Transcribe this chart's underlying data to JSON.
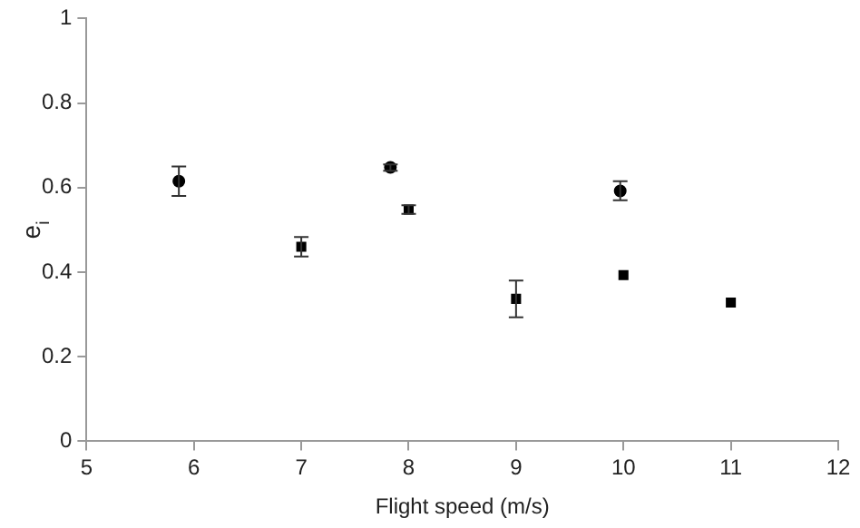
{
  "chart_data": {
    "type": "scatter",
    "xlabel": "Flight speed (m/s)",
    "ylabel": "e$_{i}$",
    "xlim": [
      5,
      12
    ],
    "xticks": [
      5,
      6,
      7,
      8,
      9,
      10,
      11,
      12
    ],
    "ylim": [
      0,
      1
    ],
    "yticks": [
      0,
      0.2,
      0.4,
      0.6,
      0.8,
      1
    ],
    "grid": false,
    "legend": false,
    "series": [
      {
        "color": "#000000",
        "marker": "circle",
        "x": [
          5.86,
          7.83,
          9.97
        ],
        "values": [
          0.615,
          0.648,
          0.592
        ],
        "errors": [
          [
            0.58,
            0.65
          ],
          [
            0.64,
            0.655
          ],
          [
            0.57,
            0.615
          ]
        ]
      },
      {
        "color": "#000000",
        "marker": "square",
        "x": [
          7,
          8,
          9,
          10,
          11
        ],
        "values": [
          0.46,
          0.548,
          0.337,
          0.393,
          0.328
        ],
        "errors": [
          [
            0.437,
            0.483
          ],
          [
            0.538,
            0.558
          ],
          [
            0.293,
            0.38
          ],
          null,
          null
        ]
      }
    ]
  }
}
